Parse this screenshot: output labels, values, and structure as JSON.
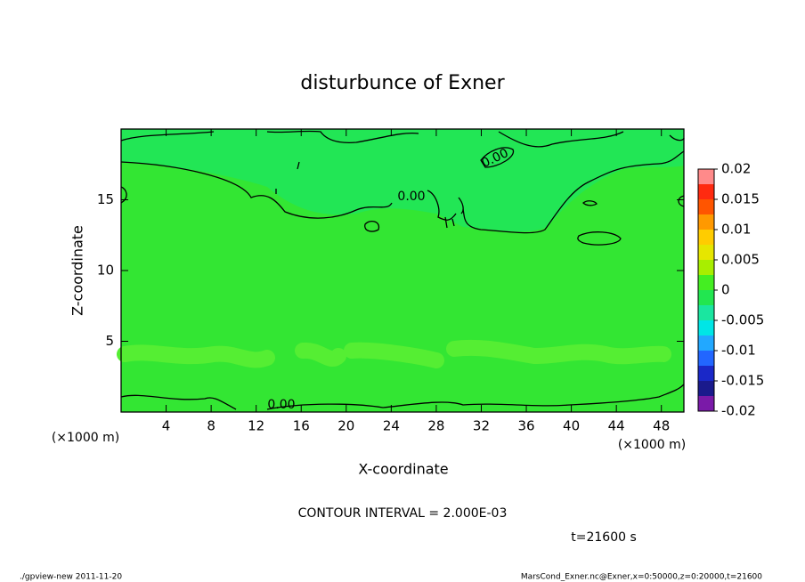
{
  "chart_data": {
    "type": "contour",
    "title": "disturbunce of Exner",
    "xlabel": "X-coordinate",
    "ylabel": "Z-coordinate",
    "x_unit_labels": [
      "(×1000 m)",
      "(×1000 m)"
    ],
    "xlim": [
      0,
      50
    ],
    "xticks": [
      4,
      8,
      12,
      16,
      20,
      24,
      28,
      32,
      36,
      40,
      44,
      48
    ],
    "ylim": [
      0,
      20
    ],
    "yticks": [
      5,
      10,
      15
    ],
    "contour_labels": [
      "0.00",
      "0.00",
      "0.00"
    ],
    "colorbar": {
      "lim": [
        -0.02,
        0.02
      ],
      "ticks": [
        0.02,
        0.015,
        0.01,
        0.005,
        0,
        -0.005,
        -0.01,
        -0.015,
        -0.02
      ],
      "colors": [
        "#7a1aa8",
        "#1a1a8c",
        "#1a28c8",
        "#2266ff",
        "#22a8ff",
        "#00e6e6",
        "#1ae6a0",
        "#22e650",
        "#44ee22",
        "#a8ee00",
        "#e6e600",
        "#ffcc00",
        "#ff9900",
        "#ff5500",
        "#ff2a10",
        "#ff8a8a"
      ]
    },
    "annotations": [
      "CONTOUR INTERVAL = 2.000E-03",
      "t=21600 s"
    ],
    "footer_left": "./gpview-new  2011-11-20",
    "footer_right": "MarsCond_Exner.nc@Exner,x=0:50000,z=0:20000,t=21600"
  }
}
